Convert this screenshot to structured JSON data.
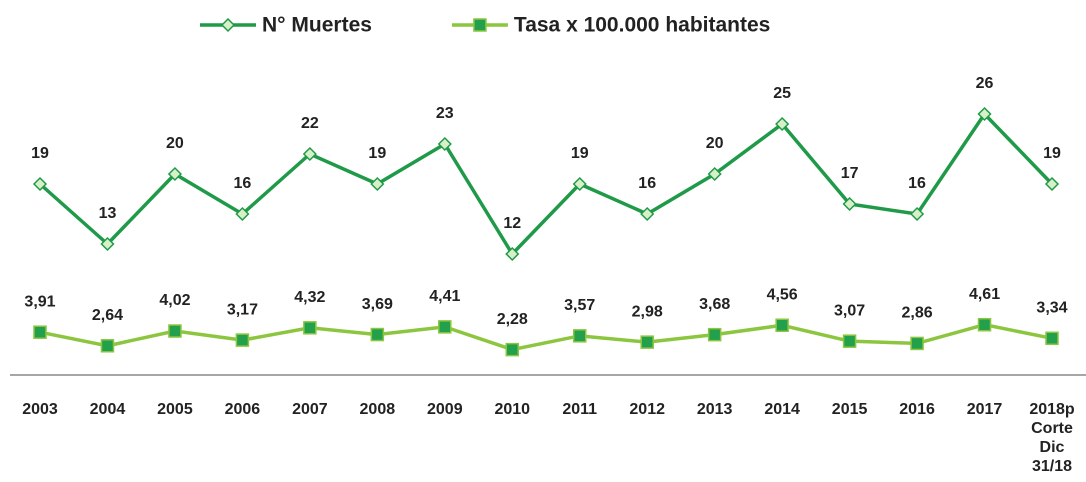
{
  "chart_data": {
    "type": "line",
    "categories": [
      "2003",
      "2004",
      "2005",
      "2006",
      "2007",
      "2008",
      "2009",
      "2010",
      "2011",
      "2012",
      "2013",
      "2014",
      "2015",
      "2016",
      "2017",
      "2018p Corte Dic 31/18"
    ],
    "series": [
      {
        "name": "N° Muertes",
        "color": "#1f9a48",
        "marker": "diamond",
        "values": [
          19,
          13,
          20,
          16,
          22,
          19,
          23,
          12,
          19,
          16,
          20,
          25,
          17,
          16,
          26,
          19
        ]
      },
      {
        "name": "Tasa x 100.000 habitantes",
        "color": "#8cc63f",
        "marker": "square",
        "axis": "y2",
        "values": [
          3.91,
          2.64,
          4.02,
          3.17,
          4.32,
          3.69,
          4.41,
          2.28,
          3.57,
          2.98,
          3.68,
          4.56,
          3.07,
          2.86,
          4.61,
          3.34
        ],
        "value_labels": [
          "3,91",
          "2,64",
          "4,02",
          "3,17",
          "4,32",
          "3,69",
          "4,41",
          "2,28",
          "3,57",
          "2,98",
          "3,68",
          "4,56",
          "3,07",
          "2,86",
          "4,61",
          "3,34"
        ]
      }
    ],
    "ylim": [
      0,
      31
    ],
    "y2lim": [
      0,
      29
    ],
    "legend": "top"
  }
}
